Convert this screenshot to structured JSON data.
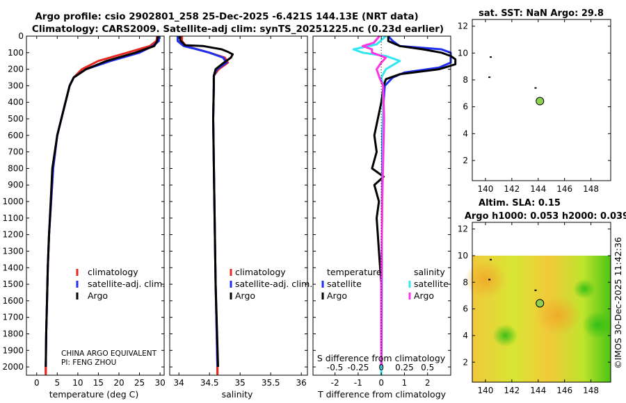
{
  "title_line1": "Argo profile: csio 2902801_258 25-Dec-2025 -6.421S 144.13E (NRT data)",
  "title_line2": "Climatology: CARS2009. Satellite-adj clim: synTS_20251225.nc (0.23d earlier)",
  "timestamp": "©IMOS 30-Dec-2025 11:42:36",
  "colors": {
    "climatology": "#e8281e",
    "satellite": "#1f2ff0",
    "argo": "#000000",
    "argo_s": "#ff33e6",
    "sat_s": "#33e6f0"
  },
  "chart_data": [
    {
      "type": "line",
      "panel": "temperature",
      "xlabel": "temperature (deg C)",
      "ylabel": "",
      "xlim": [
        -2.5,
        31
      ],
      "ylim": [
        2050,
        0
      ],
      "xticks": [
        "0",
        "5",
        "10",
        "15",
        "20",
        "25",
        "30"
      ],
      "yticks": [
        "0",
        "100",
        "200",
        "300",
        "400",
        "500",
        "600",
        "700",
        "800",
        "900",
        "1000",
        "1100",
        "1200",
        "1300",
        "1400",
        "1500",
        "1600",
        "1700",
        "1800",
        "1900",
        "2000"
      ],
      "legend": [
        "climatology",
        "satellite-adj. clim.",
        "Argo"
      ],
      "annotation": [
        "CHINA ARGO EQUIVALENT",
        "PI: FENG ZHOU"
      ],
      "series": [
        {
          "name": "climatology",
          "depth": [
            0,
            30,
            60,
            100,
            150,
            200,
            250,
            300,
            400,
            500,
            600,
            800,
            1000,
            1200,
            1400,
            1600,
            1800,
            2000,
            2040
          ],
          "values": [
            29.3,
            29.1,
            27.5,
            22,
            15,
            11,
            9,
            8,
            7,
            6,
            5,
            4,
            3.5,
            3,
            2.7,
            2.5,
            2.3,
            2.2,
            2.2
          ]
        },
        {
          "name": "satellite-adj. clim.",
          "depth": [
            0,
            30,
            60,
            100,
            150,
            200,
            250,
            300,
            400,
            500,
            600,
            800,
            1000,
            1200,
            1400,
            1600,
            1800,
            2000
          ],
          "values": [
            29.8,
            29.7,
            28.2,
            25,
            18,
            12,
            9,
            8,
            7,
            6,
            5,
            4,
            3.5,
            3,
            2.7,
            2.5,
            2.3,
            2.2
          ]
        },
        {
          "name": "Argo",
          "depth": [
            0,
            30,
            60,
            100,
            150,
            200,
            250,
            300,
            400,
            500,
            600,
            800,
            900,
            1000,
            1200,
            1400,
            1600,
            1800,
            2000
          ],
          "values": [
            29.5,
            29.3,
            28.6,
            24,
            17,
            12,
            9,
            8,
            7,
            6,
            5,
            3.8,
            3.6,
            3.4,
            3,
            2.7,
            2.5,
            2.3,
            2.2
          ]
        }
      ]
    },
    {
      "type": "line",
      "panel": "salinity",
      "xlabel": "salinity",
      "xlim": [
        33.85,
        36.1
      ],
      "ylim": [
        2050,
        0
      ],
      "xticks": [
        "34",
        "34.5",
        "35",
        "35.5",
        "36"
      ],
      "legend": [
        "climatology",
        "satellite-adj. clim.",
        "Argo"
      ],
      "series": [
        {
          "name": "climatology",
          "depth": [
            0,
            30,
            60,
            80,
            100,
            130,
            160,
            200,
            240,
            300,
            500,
            1000,
            1500,
            2000,
            2040
          ],
          "values": [
            34.05,
            34.05,
            34.12,
            34.3,
            34.5,
            34.75,
            34.8,
            34.65,
            34.57,
            34.57,
            34.56,
            34.58,
            34.6,
            34.63,
            34.63
          ]
        },
        {
          "name": "satellite-adj. clim.",
          "depth": [
            0,
            30,
            60,
            80,
            100,
            130,
            160,
            200,
            240,
            300,
            500,
            1000,
            1500,
            2000
          ],
          "values": [
            33.98,
            33.98,
            34.08,
            34.3,
            34.5,
            34.72,
            34.78,
            34.62,
            34.57,
            34.57,
            34.56,
            34.58,
            34.6,
            34.63
          ]
        },
        {
          "name": "Argo",
          "depth": [
            0,
            25,
            55,
            60,
            70,
            80,
            95,
            110,
            130,
            170,
            200,
            240,
            300,
            500,
            1000,
            1500,
            2000
          ],
          "values": [
            34.02,
            34.02,
            34.1,
            34.4,
            34.55,
            34.7,
            34.8,
            34.88,
            34.85,
            34.7,
            34.6,
            34.57,
            34.57,
            34.56,
            34.58,
            34.6,
            34.64
          ]
        }
      ]
    },
    {
      "type": "line",
      "panel": "difference",
      "xlabel": "T difference from climatology",
      "xlabel2": "S difference from climatology",
      "xlim": [
        -2.95,
        3
      ],
      "ylim": [
        2050,
        0
      ],
      "xticks": [
        "-2",
        "-1",
        "0",
        "1",
        "2"
      ],
      "xticks2": [
        "-0.5",
        "-0.25",
        "0",
        "0.25",
        "0.5"
      ],
      "legend_temperature_title": "temperature",
      "legend_salinity_title": "salinity",
      "legend_labels": [
        "satellite",
        "Argo",
        "satellite",
        "Argo"
      ],
      "series": [
        {
          "name": "temperature satellite",
          "depth": [
            0,
            30,
            60,
            80,
            100,
            130,
            160,
            190,
            220,
            250,
            300,
            400,
            600,
            1000,
            1500,
            2000
          ],
          "values": [
            0.3,
            0.5,
            0.8,
            2.6,
            3,
            3,
            3,
            2.5,
            1,
            0.5,
            0.15,
            0.1,
            0.05,
            0.03,
            0.02,
            0.01
          ]
        },
        {
          "name": "temperature Argo",
          "depth": [
            0,
            30,
            60,
            80,
            100,
            120,
            140,
            170,
            200,
            230,
            260,
            300,
            400,
            600,
            700,
            800,
            850,
            900,
            1000,
            1100,
            1200,
            1300,
            1400,
            1500,
            1600,
            1800,
            2000
          ],
          "values": [
            0.3,
            0.3,
            0.8,
            1.8,
            2.6,
            3,
            3.2,
            3.2,
            2.5,
            0.8,
            0.2,
            0.1,
            0,
            -0.3,
            -0.2,
            -0.4,
            0.1,
            -0.3,
            -0.1,
            -0.2,
            -0.15,
            -0.1,
            -0.05,
            0,
            0,
            0,
            0
          ]
        },
        {
          "name": "salinity satellite",
          "depth": [
            0,
            50,
            80,
            100,
            120,
            150,
            200,
            250,
            300,
            500,
            1000,
            1500,
            2000
          ],
          "values": [
            0.05,
            -0.05,
            -0.3,
            -0.2,
            0.05,
            0.2,
            0.05,
            0,
            0.02,
            0.02,
            0.01,
            0,
            0
          ]
        },
        {
          "name": "salinity Argo",
          "depth": [
            0,
            40,
            60,
            80,
            100,
            130,
            160,
            200,
            250,
            300,
            500,
            1000,
            1500,
            2000
          ],
          "values": [
            -0.02,
            -0.08,
            -0.2,
            -0.1,
            -0.1,
            0.05,
            0,
            -0.05,
            -0.02,
            0.02,
            0.03,
            0.01,
            0,
            0
          ]
        }
      ]
    },
    {
      "type": "scatter",
      "panel": "sst_map",
      "title": "sat. SST: NaN Argo: 29.8",
      "xlim": [
        139,
        149.5
      ],
      "ylim": [
        0.5,
        12.5
      ],
      "xticks": [
        "140",
        "142",
        "144",
        "146",
        "148"
      ],
      "yticks": [
        "2",
        "4",
        "6",
        "8",
        "10",
        "12"
      ],
      "points": [
        {
          "x": 140.4,
          "y": 9.7,
          "kind": "track"
        },
        {
          "x": 140.3,
          "y": 8.2,
          "kind": "track"
        },
        {
          "x": 143.8,
          "y": 7.4,
          "kind": "track"
        },
        {
          "x": 144.13,
          "y": 6.421,
          "kind": "current"
        }
      ]
    },
    {
      "type": "heatmap",
      "panel": "sla_map",
      "title_line1": "Altim. SLA: 0.15",
      "title_line2": "Argo h1000: 0.053 h2000: 0.039",
      "xlim": [
        139,
        149.5
      ],
      "ylim": [
        0.5,
        12.5
      ],
      "data_top": 10,
      "xticks": [
        "140",
        "142",
        "144",
        "146",
        "148"
      ],
      "yticks": [
        "2",
        "4",
        "6",
        "8",
        "10",
        "12"
      ],
      "points": [
        {
          "x": 140.4,
          "y": 9.7,
          "kind": "track"
        },
        {
          "x": 140.3,
          "y": 8.2,
          "kind": "track"
        },
        {
          "x": 143.8,
          "y": 7.4,
          "kind": "track"
        },
        {
          "x": 144.13,
          "y": 6.421,
          "kind": "current"
        }
      ]
    }
  ]
}
